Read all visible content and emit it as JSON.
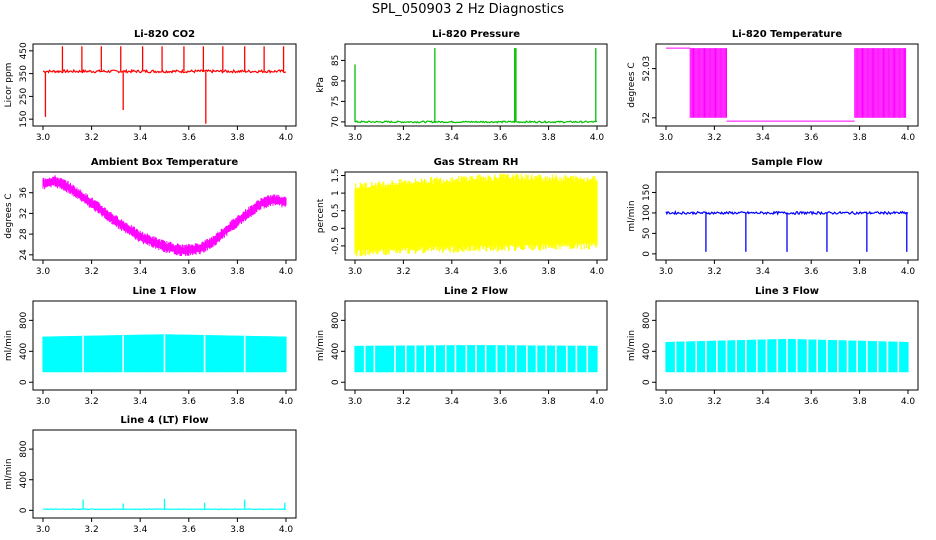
{
  "title": "SPL_050903  2 Hz Diagnostics",
  "chart_data": [
    {
      "type": "line",
      "title": "Li-820 CO2",
      "ylabel": "Licor ppm",
      "xlim": [
        3.0,
        4.0
      ],
      "ylim": [
        120,
        480
      ],
      "yticks": [
        150,
        250,
        350,
        450
      ],
      "xticks": [
        "3.0",
        "3.2",
        "3.4",
        "3.6",
        "3.8",
        "4.0"
      ],
      "color": "#ff0000",
      "grid": false,
      "baseline": 360,
      "noise": 6,
      "spikes": [
        [
          3.01,
          160
        ],
        [
          3.08,
          470
        ],
        [
          3.16,
          470
        ],
        [
          3.24,
          470
        ],
        [
          3.32,
          470
        ],
        [
          3.33,
          190
        ],
        [
          3.41,
          470
        ],
        [
          3.49,
          470
        ],
        [
          3.58,
          470
        ],
        [
          3.66,
          470
        ],
        [
          3.67,
          130
        ],
        [
          3.74,
          470
        ],
        [
          3.83,
          470
        ],
        [
          3.91,
          470
        ],
        [
          3.99,
          470
        ]
      ]
    },
    {
      "type": "line",
      "title": "Li-820 Pressure",
      "ylabel": "kPa",
      "xlim": [
        3.0,
        4.0
      ],
      "ylim": [
        69,
        89
      ],
      "yticks": [
        70,
        75,
        80,
        85
      ],
      "xticks": [
        "3.0",
        "3.2",
        "3.4",
        "3.6",
        "3.8",
        "4.0"
      ],
      "color": "#00c000",
      "grid": false,
      "baseline": 70,
      "noise": 0.2,
      "spikes": [
        [
          3.0,
          84
        ],
        [
          3.33,
          88
        ],
        [
          3.66,
          88
        ],
        [
          3.665,
          88
        ],
        [
          3.995,
          88
        ]
      ]
    },
    {
      "type": "line",
      "title": "Li-820 Temperature",
      "ylabel": "degrees C",
      "xlim": [
        3.0,
        4.0
      ],
      "ylim": [
        51.995,
        52.045
      ],
      "yticks": [
        52.0,
        52.03
      ],
      "xticks": [
        "3.0",
        "3.2",
        "3.4",
        "3.6",
        "3.8",
        "4.0"
      ],
      "color": "#ff00ff",
      "grid": false,
      "segments": [
        [
          3.0,
          3.1,
          52.0425,
          52.0425
        ],
        [
          3.1,
          3.25,
          52.0,
          52.0425
        ],
        [
          3.25,
          3.78,
          51.998,
          51.998
        ],
        [
          3.78,
          3.99,
          52.0,
          52.0425
        ]
      ]
    },
    {
      "type": "line",
      "title": "Ambient Box Temperature",
      "ylabel": "degrees C",
      "xlim": [
        3.0,
        4.0
      ],
      "ylim": [
        23,
        40
      ],
      "yticks": [
        24,
        28,
        32,
        36
      ],
      "xticks": [
        "3.0",
        "3.2",
        "3.4",
        "3.6",
        "3.8",
        "4.0"
      ],
      "color": "#ff00ff",
      "grid": false,
      "curve": [
        [
          3.0,
          37.8
        ],
        [
          3.05,
          38.2
        ],
        [
          3.1,
          37.2
        ],
        [
          3.2,
          34.0
        ],
        [
          3.3,
          30.5
        ],
        [
          3.4,
          27.5
        ],
        [
          3.5,
          25.6
        ],
        [
          3.58,
          24.8
        ],
        [
          3.65,
          25.3
        ],
        [
          3.7,
          26.6
        ],
        [
          3.8,
          30.5
        ],
        [
          3.9,
          34.0
        ],
        [
          3.95,
          34.6
        ],
        [
          4.0,
          34.2
        ]
      ],
      "noise": 0.6
    },
    {
      "type": "line",
      "title": "Gas Stream RH",
      "ylabel": "percent",
      "xlim": [
        3.0,
        4.0
      ],
      "ylim": [
        -0.9,
        1.6
      ],
      "yticks": [
        -0.5,
        0.0,
        0.5,
        1.0,
        1.5
      ],
      "xticks": [
        "3.0",
        "3.2",
        "3.4",
        "3.6",
        "3.8",
        "4.0"
      ],
      "color": "#ffff00",
      "grid": false,
      "band": [
        [
          3.0,
          -0.6,
          1.1
        ],
        [
          3.3,
          -0.5,
          1.25
        ],
        [
          3.6,
          -0.45,
          1.35
        ],
        [
          4.0,
          -0.4,
          1.3
        ]
      ]
    },
    {
      "type": "line",
      "title": "Sample Flow",
      "ylabel": "ml/min",
      "xlim": [
        3.0,
        4.0
      ],
      "ylim": [
        -15,
        200
      ],
      "yticks": [
        0,
        50,
        100,
        150
      ],
      "xticks": [
        "3.0",
        "3.2",
        "3.4",
        "3.6",
        "3.8",
        "4.0"
      ],
      "color": "#0000ff",
      "grid": false,
      "baseline": 100,
      "noise": 3,
      "spikes": [
        [
          3.165,
          5
        ],
        [
          3.33,
          5
        ],
        [
          3.5,
          5
        ],
        [
          3.665,
          5
        ],
        [
          3.83,
          5
        ],
        [
          3.995,
          5
        ]
      ]
    },
    {
      "type": "line",
      "title": "Line 1 Flow",
      "ylabel": "ml/min",
      "xlim": [
        3.0,
        4.0
      ],
      "ylim": [
        -100,
        1050
      ],
      "yticks": [
        0,
        400,
        800
      ],
      "xticks": [
        "3.0",
        "3.2",
        "3.4",
        "3.6",
        "3.8",
        "4.0"
      ],
      "color": "#00ffff",
      "grid": false,
      "band": [
        [
          3.0,
          130,
          590
        ],
        [
          3.5,
          130,
          620
        ],
        [
          4.0,
          130,
          590
        ]
      ],
      "gaps": [
        3.165,
        3.33,
        3.5,
        3.665,
        3.83
      ]
    },
    {
      "type": "line",
      "title": "Line 2 Flow",
      "ylabel": "ml/min",
      "xlim": [
        3.0,
        4.0
      ],
      "ylim": [
        -100,
        1050
      ],
      "yticks": [
        0,
        400,
        800
      ],
      "xticks": [
        "3.0",
        "3.2",
        "3.4",
        "3.6",
        "3.8",
        "4.0"
      ],
      "color": "#00ffff",
      "grid": false,
      "band": [
        [
          3.0,
          130,
          470
        ],
        [
          3.5,
          130,
          480
        ],
        [
          4.0,
          130,
          470
        ]
      ],
      "gaps": [
        3.04,
        3.08,
        3.165,
        3.21,
        3.25,
        3.29,
        3.33,
        3.375,
        3.415,
        3.46,
        3.5,
        3.54,
        3.585,
        3.625,
        3.665,
        3.71,
        3.75,
        3.79,
        3.83,
        3.875,
        3.915,
        3.96
      ]
    },
    {
      "type": "line",
      "title": "Line 3 Flow",
      "ylabel": "ml/min",
      "xlim": [
        3.0,
        4.0
      ],
      "ylim": [
        -100,
        1050
      ],
      "yticks": [
        0,
        400,
        800
      ],
      "xticks": [
        "3.0",
        "3.2",
        "3.4",
        "3.6",
        "3.8",
        "4.0"
      ],
      "color": "#00ffff",
      "grid": false,
      "band": [
        [
          3.0,
          130,
          520
        ],
        [
          3.5,
          130,
          560
        ],
        [
          4.0,
          130,
          520
        ]
      ],
      "gaps": [
        3.04,
        3.08,
        3.125,
        3.165,
        3.21,
        3.25,
        3.29,
        3.33,
        3.375,
        3.415,
        3.46,
        3.5,
        3.54,
        3.585,
        3.625,
        3.665,
        3.71,
        3.75,
        3.79,
        3.83,
        3.875,
        3.915,
        3.96
      ]
    },
    {
      "type": "line",
      "title": "Line 4 (LT) Flow",
      "ylabel": "ml/min",
      "xlim": [
        3.0,
        4.0
      ],
      "ylim": [
        -100,
        1050
      ],
      "yticks": [
        0,
        400,
        800
      ],
      "xticks": [
        "3.0",
        "3.2",
        "3.4",
        "3.6",
        "3.8",
        "4.0"
      ],
      "color": "#00ffff",
      "grid": false,
      "baseline": 15,
      "noise": 4,
      "spikes": [
        [
          3.165,
          140
        ],
        [
          3.33,
          90
        ],
        [
          3.5,
          150
        ],
        [
          3.665,
          100
        ],
        [
          3.83,
          140
        ],
        [
          3.995,
          100
        ]
      ]
    }
  ]
}
